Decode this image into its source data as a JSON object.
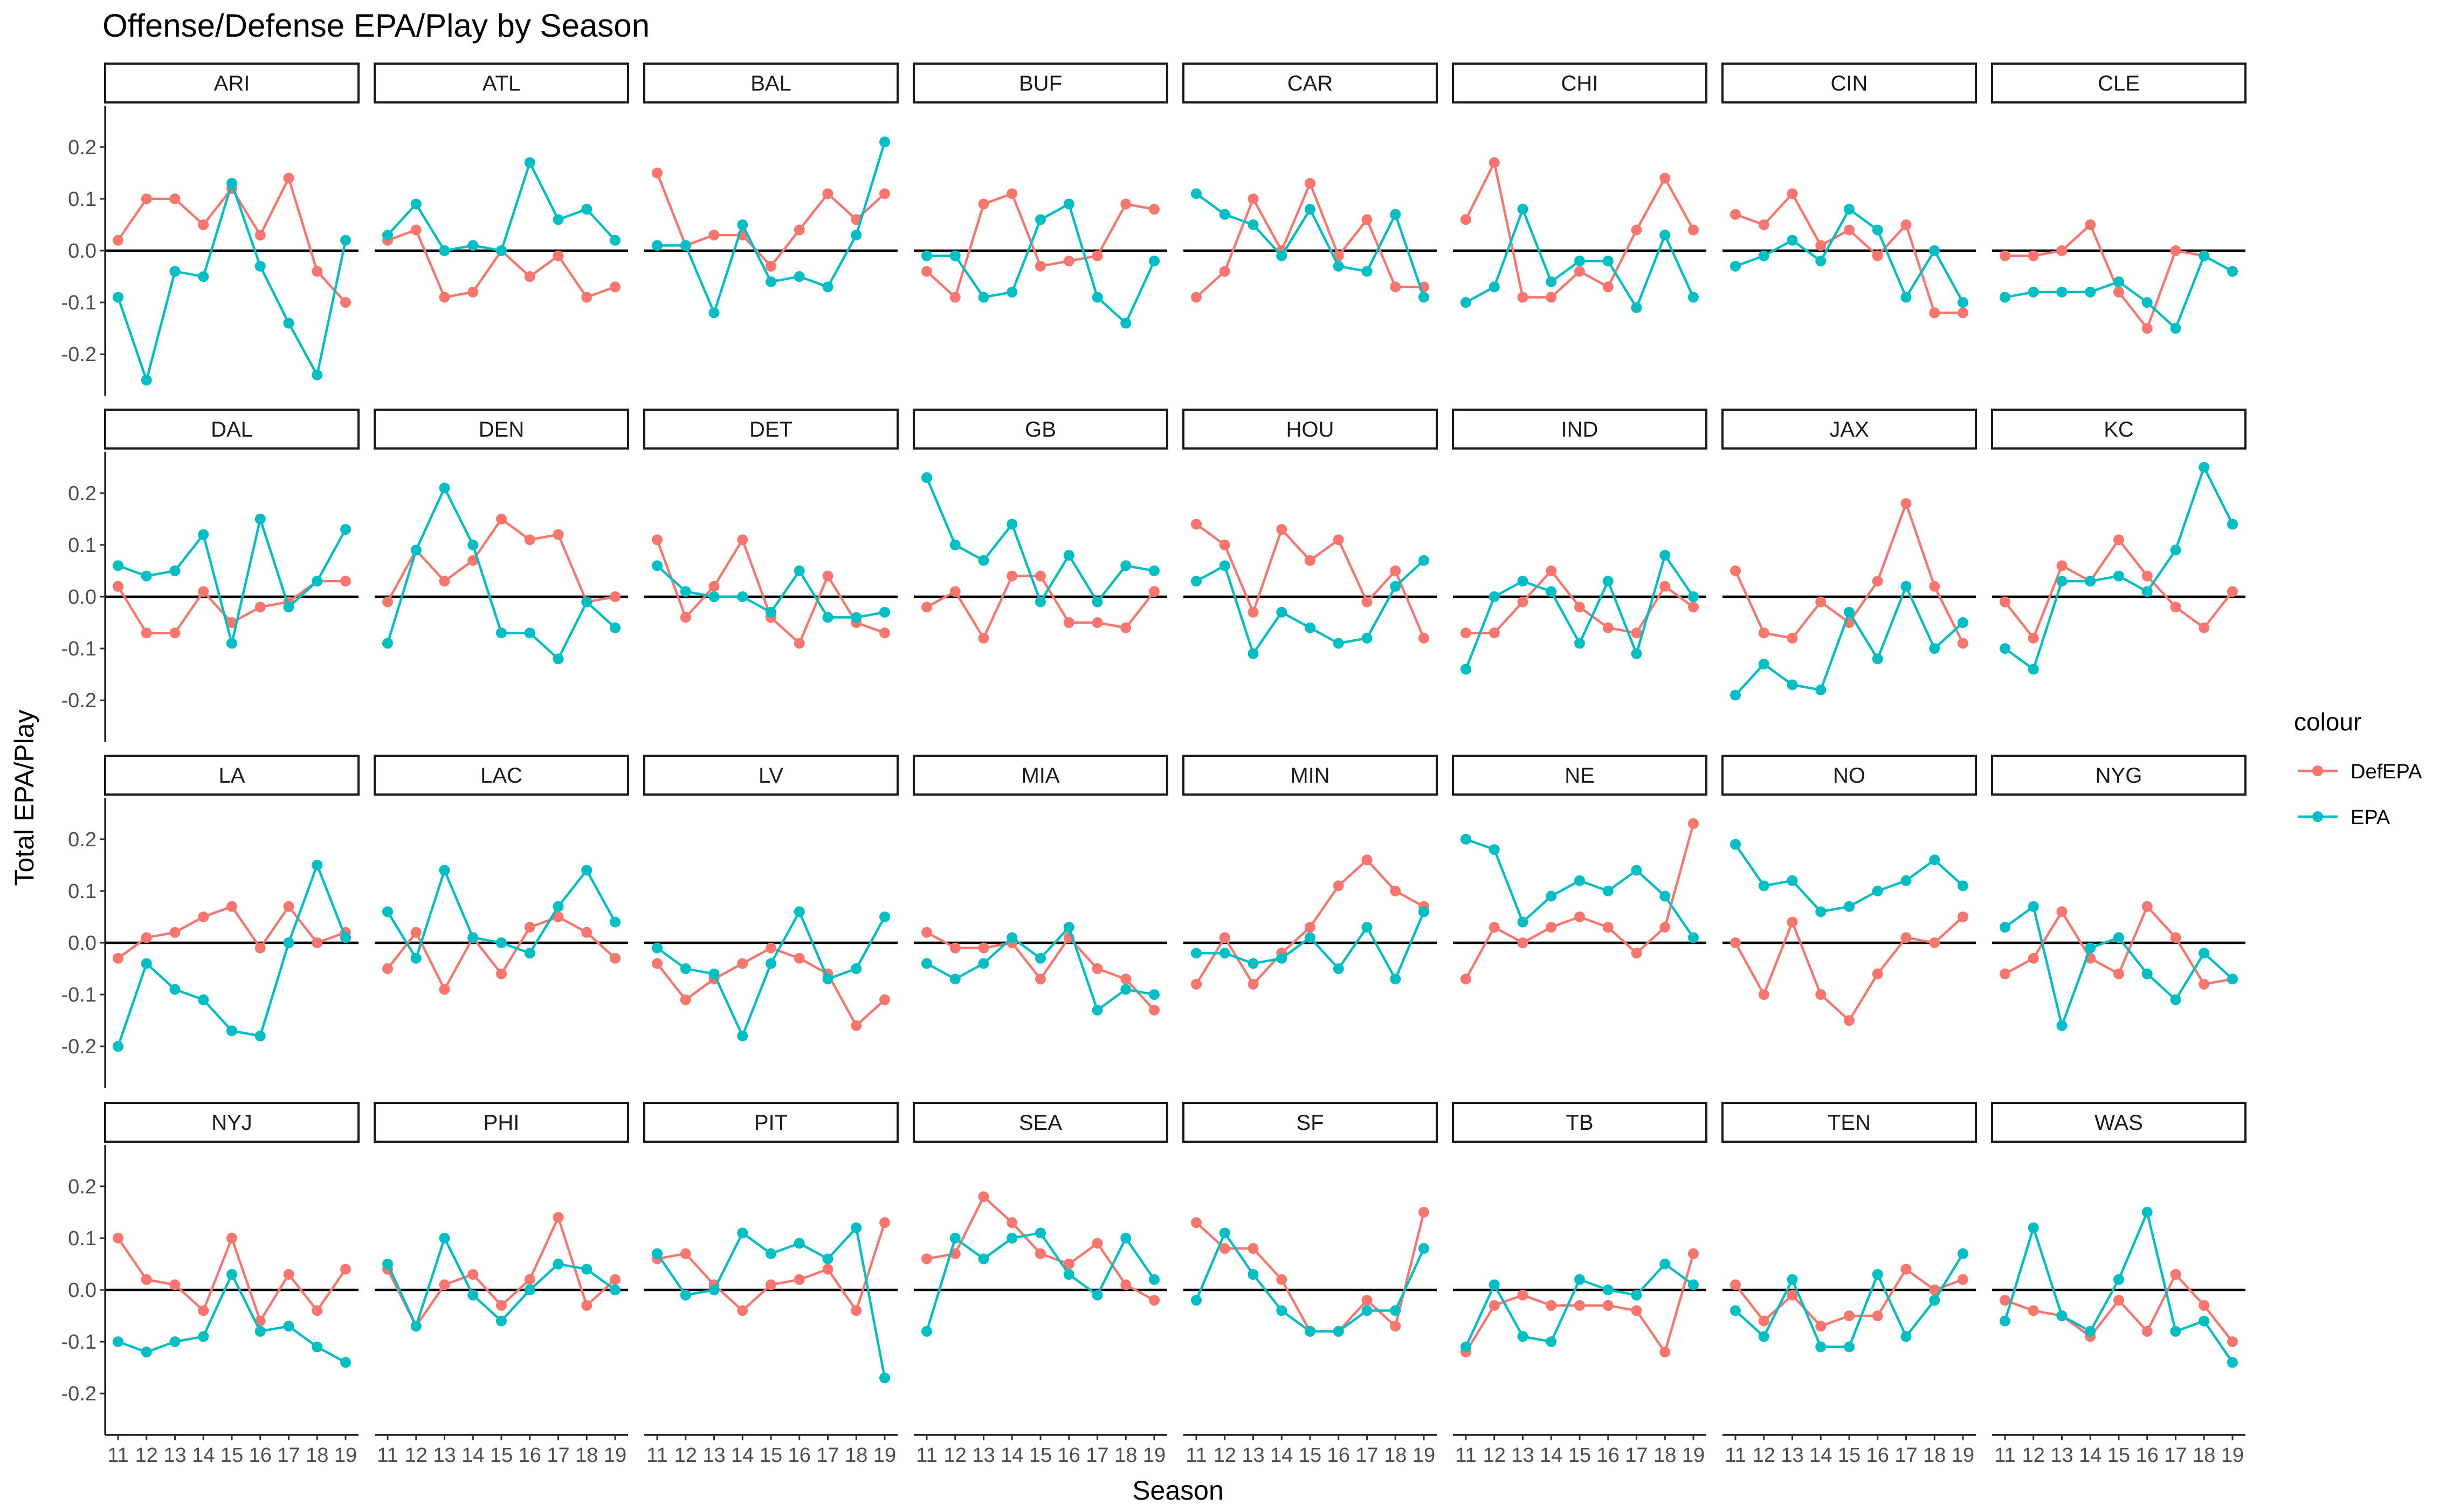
{
  "chart_data": {
    "type": "line",
    "layout": "facet-grid",
    "title": "Offense/Defense EPA/Play by Season",
    "xlabel": "Season",
    "ylabel": "Total EPA/Play",
    "x": [
      "11",
      "12",
      "13",
      "14",
      "15",
      "16",
      "17",
      "18",
      "19"
    ],
    "xlim": [
      11,
      19
    ],
    "ylim": [
      -0.28,
      0.28
    ],
    "yticks": [
      0.2,
      0.1,
      0.0,
      -0.1,
      -0.2
    ],
    "ytick_labels": [
      "0.2",
      "0.1",
      "0.0",
      "-0.1",
      "-0.2"
    ],
    "reference_line_y": 0,
    "grid": false,
    "legend": {
      "title": "colour",
      "position": "right",
      "entries": [
        {
          "name": "DefEPA",
          "color": "#f8766d"
        },
        {
          "name": "EPA",
          "color": "#00bfc4"
        }
      ]
    },
    "series_names": [
      "DefEPA",
      "EPA"
    ],
    "facets": [
      {
        "team": "ARI",
        "DefEPA": [
          0.02,
          0.1,
          0.1,
          0.05,
          0.12,
          0.03,
          0.14,
          -0.04,
          -0.1
        ],
        "EPA": [
          -0.09,
          -0.25,
          -0.04,
          -0.05,
          0.13,
          -0.03,
          -0.14,
          -0.24,
          0.02
        ]
      },
      {
        "team": "ATL",
        "DefEPA": [
          0.02,
          0.04,
          -0.09,
          -0.08,
          0.0,
          -0.05,
          -0.01,
          -0.09,
          -0.07
        ],
        "EPA": [
          0.03,
          0.09,
          0.0,
          0.01,
          0.0,
          0.17,
          0.06,
          0.08,
          0.02
        ]
      },
      {
        "team": "BAL",
        "DefEPA": [
          0.15,
          0.01,
          0.03,
          0.03,
          -0.03,
          0.04,
          0.11,
          0.06,
          0.11
        ],
        "EPA": [
          0.01,
          0.01,
          -0.12,
          0.05,
          -0.06,
          -0.05,
          -0.07,
          0.03,
          0.21
        ]
      },
      {
        "team": "BUF",
        "DefEPA": [
          -0.04,
          -0.09,
          0.09,
          0.11,
          -0.03,
          -0.02,
          -0.01,
          0.09,
          0.08
        ],
        "EPA": [
          -0.01,
          -0.01,
          -0.09,
          -0.08,
          0.06,
          0.09,
          -0.09,
          -0.14,
          -0.02
        ]
      },
      {
        "team": "CAR",
        "DefEPA": [
          -0.09,
          -0.04,
          0.1,
          0.0,
          0.13,
          -0.01,
          0.06,
          -0.07,
          -0.07
        ],
        "EPA": [
          0.11,
          0.07,
          0.05,
          -0.01,
          0.08,
          -0.03,
          -0.04,
          0.07,
          -0.09
        ]
      },
      {
        "team": "CHI",
        "DefEPA": [
          0.06,
          0.17,
          -0.09,
          -0.09,
          -0.04,
          -0.07,
          0.04,
          0.14,
          0.04
        ],
        "EPA": [
          -0.1,
          -0.07,
          0.08,
          -0.06,
          -0.02,
          -0.02,
          -0.11,
          0.03,
          -0.09
        ]
      },
      {
        "team": "CIN",
        "DefEPA": [
          0.07,
          0.05,
          0.11,
          0.01,
          0.04,
          -0.01,
          0.05,
          -0.12,
          -0.12
        ],
        "EPA": [
          -0.03,
          -0.01,
          0.02,
          -0.02,
          0.08,
          0.04,
          -0.09,
          0.0,
          -0.1
        ]
      },
      {
        "team": "CLE",
        "DefEPA": [
          -0.01,
          -0.01,
          0.0,
          0.05,
          -0.08,
          -0.15,
          0.0,
          -0.01,
          -0.04
        ],
        "EPA": [
          -0.09,
          -0.08,
          -0.08,
          -0.08,
          -0.06,
          -0.1,
          -0.15,
          -0.01,
          -0.04
        ]
      },
      {
        "team": "DAL",
        "DefEPA": [
          0.02,
          -0.07,
          -0.07,
          0.01,
          -0.05,
          -0.02,
          -0.01,
          0.03,
          0.03
        ],
        "EPA": [
          0.06,
          0.04,
          0.05,
          0.12,
          -0.09,
          0.15,
          -0.02,
          0.03,
          0.13
        ]
      },
      {
        "team": "DEN",
        "DefEPA": [
          -0.01,
          0.09,
          0.03,
          0.07,
          0.15,
          0.11,
          0.12,
          -0.01,
          0.0
        ],
        "EPA": [
          -0.09,
          0.09,
          0.21,
          0.1,
          -0.07,
          -0.07,
          -0.12,
          -0.01,
          -0.06
        ]
      },
      {
        "team": "DET",
        "DefEPA": [
          0.11,
          -0.04,
          0.02,
          0.11,
          -0.04,
          -0.09,
          0.04,
          -0.05,
          -0.07
        ],
        "EPA": [
          0.06,
          0.01,
          0.0,
          0.0,
          -0.03,
          0.05,
          -0.04,
          -0.04,
          -0.03
        ]
      },
      {
        "team": "GB",
        "DefEPA": [
          -0.02,
          0.01,
          -0.08,
          0.04,
          0.04,
          -0.05,
          -0.05,
          -0.06,
          0.01
        ],
        "EPA": [
          0.23,
          0.1,
          0.07,
          0.14,
          -0.01,
          0.08,
          -0.01,
          0.06,
          0.05
        ]
      },
      {
        "team": "HOU",
        "DefEPA": [
          0.14,
          0.1,
          -0.03,
          0.13,
          0.07,
          0.11,
          -0.01,
          0.05,
          -0.08
        ],
        "EPA": [
          0.03,
          0.06,
          -0.11,
          -0.03,
          -0.06,
          -0.09,
          -0.08,
          0.02,
          0.07
        ]
      },
      {
        "team": "IND",
        "DefEPA": [
          -0.07,
          -0.07,
          -0.01,
          0.05,
          -0.02,
          -0.06,
          -0.07,
          0.02,
          -0.02
        ],
        "EPA": [
          -0.14,
          0.0,
          0.03,
          0.01,
          -0.09,
          0.03,
          -0.11,
          0.08,
          0.0
        ]
      },
      {
        "team": "JAX",
        "DefEPA": [
          0.05,
          -0.07,
          -0.08,
          -0.01,
          -0.05,
          0.03,
          0.18,
          0.02,
          -0.09
        ],
        "EPA": [
          -0.19,
          -0.13,
          -0.17,
          -0.18,
          -0.03,
          -0.12,
          0.02,
          -0.1,
          -0.05
        ]
      },
      {
        "team": "KC",
        "DefEPA": [
          -0.01,
          -0.08,
          0.06,
          0.03,
          0.11,
          0.04,
          -0.02,
          -0.06,
          0.01
        ],
        "EPA": [
          -0.1,
          -0.14,
          0.03,
          0.03,
          0.04,
          0.01,
          0.09,
          0.25,
          0.14
        ]
      },
      {
        "team": "LA",
        "DefEPA": [
          -0.03,
          0.01,
          0.02,
          0.05,
          0.07,
          -0.01,
          0.07,
          0.0,
          0.02
        ],
        "EPA": [
          -0.2,
          -0.04,
          -0.09,
          -0.11,
          -0.17,
          -0.18,
          0.0,
          0.15,
          0.01
        ]
      },
      {
        "team": "LAC",
        "DefEPA": [
          -0.05,
          0.02,
          -0.09,
          0.01,
          -0.06,
          0.03,
          0.05,
          0.02,
          -0.03
        ],
        "EPA": [
          0.06,
          -0.03,
          0.14,
          0.01,
          0.0,
          -0.02,
          0.07,
          0.14,
          0.04
        ]
      },
      {
        "team": "LV",
        "DefEPA": [
          -0.04,
          -0.11,
          -0.07,
          -0.04,
          -0.01,
          -0.03,
          -0.06,
          -0.16,
          -0.11
        ],
        "EPA": [
          -0.01,
          -0.05,
          -0.06,
          -0.18,
          -0.04,
          0.06,
          -0.07,
          -0.05,
          0.05
        ]
      },
      {
        "team": "MIA",
        "DefEPA": [
          0.02,
          -0.01,
          -0.01,
          0.0,
          -0.07,
          0.01,
          -0.05,
          -0.07,
          -0.13
        ],
        "EPA": [
          -0.04,
          -0.07,
          -0.04,
          0.01,
          -0.03,
          0.03,
          -0.13,
          -0.09,
          -0.1
        ]
      },
      {
        "team": "MIN",
        "DefEPA": [
          -0.08,
          0.01,
          -0.08,
          -0.02,
          0.03,
          0.11,
          0.16,
          0.1,
          0.07
        ],
        "EPA": [
          -0.02,
          -0.02,
          -0.04,
          -0.03,
          0.01,
          -0.05,
          0.03,
          -0.07,
          0.06
        ]
      },
      {
        "team": "NE",
        "DefEPA": [
          -0.07,
          0.03,
          0.0,
          0.03,
          0.05,
          0.03,
          -0.02,
          0.03,
          0.23
        ],
        "EPA": [
          0.2,
          0.18,
          0.04,
          0.09,
          0.12,
          0.1,
          0.14,
          0.09,
          0.01
        ]
      },
      {
        "team": "NO",
        "DefEPA": [
          0.0,
          -0.1,
          0.04,
          -0.1,
          -0.15,
          -0.06,
          0.01,
          0.0,
          0.05
        ],
        "EPA": [
          0.19,
          0.11,
          0.12,
          0.06,
          0.07,
          0.1,
          0.12,
          0.16,
          0.11
        ]
      },
      {
        "team": "NYG",
        "DefEPA": [
          -0.06,
          -0.03,
          0.06,
          -0.03,
          -0.06,
          0.07,
          0.01,
          -0.08,
          -0.07
        ],
        "EPA": [
          0.03,
          0.07,
          -0.16,
          -0.01,
          0.01,
          -0.06,
          -0.11,
          -0.02,
          -0.07
        ]
      },
      {
        "team": "NYJ",
        "DefEPA": [
          0.1,
          0.02,
          0.01,
          -0.04,
          0.1,
          -0.06,
          0.03,
          -0.04,
          0.04
        ],
        "EPA": [
          -0.1,
          -0.12,
          -0.1,
          -0.09,
          0.03,
          -0.08,
          -0.07,
          -0.11,
          -0.14
        ]
      },
      {
        "team": "PHI",
        "DefEPA": [
          0.04,
          -0.07,
          0.01,
          0.03,
          -0.03,
          0.02,
          0.14,
          -0.03,
          0.02
        ],
        "EPA": [
          0.05,
          -0.07,
          0.1,
          -0.01,
          -0.06,
          0.0,
          0.05,
          0.04,
          0.0
        ]
      },
      {
        "team": "PIT",
        "DefEPA": [
          0.06,
          0.07,
          0.01,
          -0.04,
          0.01,
          0.02,
          0.04,
          -0.04,
          0.13
        ],
        "EPA": [
          0.07,
          -0.01,
          0.0,
          0.11,
          0.07,
          0.09,
          0.06,
          0.12,
          -0.17
        ]
      },
      {
        "team": "SEA",
        "DefEPA": [
          0.06,
          0.07,
          0.18,
          0.13,
          0.07,
          0.05,
          0.09,
          0.01,
          -0.02
        ],
        "EPA": [
          -0.08,
          0.1,
          0.06,
          0.1,
          0.11,
          0.03,
          -0.01,
          0.1,
          0.02
        ]
      },
      {
        "team": "SF",
        "DefEPA": [
          0.13,
          0.08,
          0.08,
          0.02,
          -0.08,
          -0.08,
          -0.02,
          -0.07,
          0.15
        ],
        "EPA": [
          -0.02,
          0.11,
          0.03,
          -0.04,
          -0.08,
          -0.08,
          -0.04,
          -0.04,
          0.08
        ]
      },
      {
        "team": "TB",
        "DefEPA": [
          -0.12,
          -0.03,
          -0.01,
          -0.03,
          -0.03,
          -0.03,
          -0.04,
          -0.12,
          0.07
        ],
        "EPA": [
          -0.11,
          0.01,
          -0.09,
          -0.1,
          0.02,
          0.0,
          -0.01,
          0.05,
          0.01
        ]
      },
      {
        "team": "TEN",
        "DefEPA": [
          0.01,
          -0.06,
          -0.01,
          -0.07,
          -0.05,
          -0.05,
          0.04,
          0.0,
          0.02
        ],
        "EPA": [
          -0.04,
          -0.09,
          0.02,
          -0.11,
          -0.11,
          0.03,
          -0.09,
          -0.02,
          0.07
        ]
      },
      {
        "team": "WAS",
        "DefEPA": [
          -0.02,
          -0.04,
          -0.05,
          -0.09,
          -0.02,
          -0.08,
          0.03,
          -0.03,
          -0.1
        ],
        "EPA": [
          -0.06,
          0.12,
          -0.05,
          -0.08,
          0.02,
          0.15,
          -0.08,
          -0.06,
          -0.14
        ]
      }
    ]
  }
}
